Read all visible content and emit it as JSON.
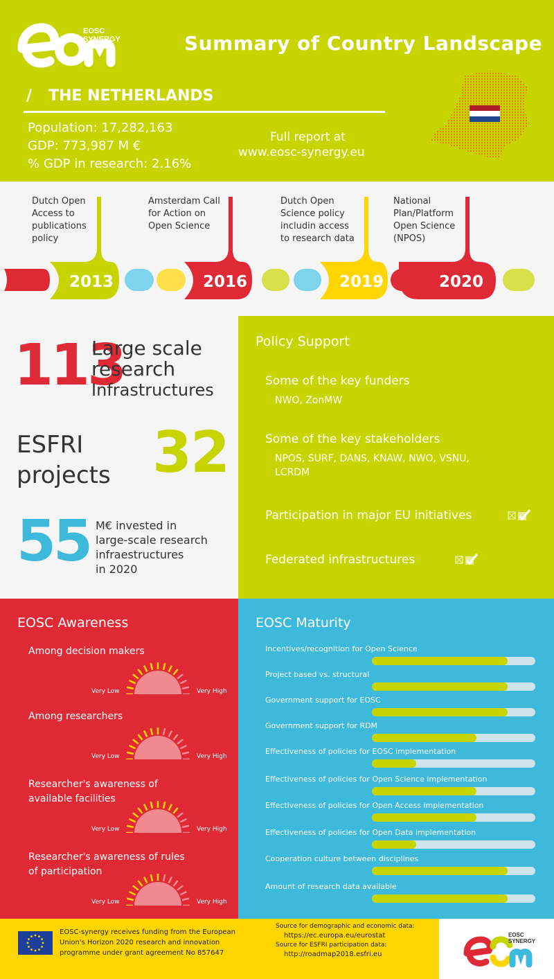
{
  "brand": {
    "logo_text_line1": "EOSC",
    "logo_text_line2": "SYNERGY",
    "colors": {
      "lime": "#c8d400",
      "red": "#df2a36",
      "blue": "#3db9db",
      "yellow": "#ffd500",
      "cyan": "#7dd4ec"
    }
  },
  "header": {
    "title": "Summary of Country Landscape",
    "slash": "/",
    "country": "THE NETHERLANDS",
    "population": "Population: 17,282,163",
    "gdp": "GDP: 773,987 M €",
    "gdp_research": "% GDP in research: 2.16%",
    "report_line1": "Full report at",
    "report_line2": "www.eosc-synergy.eu"
  },
  "timeline": {
    "events": [
      {
        "year": "2013",
        "lines": [
          "Dutch Open",
          "Access to",
          "publications",
          "policy"
        ],
        "color": "lime"
      },
      {
        "year": "2016",
        "lines": [
          "Amsterdam Call",
          "for Action on",
          "Open Science"
        ],
        "color": "red"
      },
      {
        "year": "2019",
        "lines": [
          "Dutch Open",
          "Science policy",
          "includin access",
          "to research data"
        ],
        "color": "yellow"
      },
      {
        "year": "2020",
        "lines": [
          "National",
          "Plan/Platform",
          "Open Science",
          "(NPOS)"
        ],
        "color": "red"
      }
    ]
  },
  "infrastructures": {
    "large_scale_number": "113",
    "large_scale_line1": "Large scale",
    "large_scale_line2": "research",
    "large_scale_line3": "Infrastructures",
    "esfri_line1": "ESFRI",
    "esfri_line2": "projects",
    "esfri_number": "32",
    "invest_number": "55",
    "invest_line1": "M€ invested in",
    "invest_line2": "large-scale research",
    "invest_line3": "infraestructures",
    "invest_line4": "in 2020"
  },
  "policy": {
    "title": "Policy Support",
    "funders_heading": "Some of the key funders",
    "funders": "NWO, ZonMW",
    "stakeholders_heading": "Some of the key stakeholders",
    "stakeholders_line1": "NPOS, SURF, DANS, KNAW, NWO, VSNU,",
    "stakeholders_line2": "LCRDM",
    "eu_initiatives": "Participation in major EU initiatives",
    "eu_initiatives_checked": true,
    "federated": "Federated infrastructures",
    "federated_checked": true
  },
  "awareness": {
    "title": "EOSC Awareness",
    "low_label": "Very Low",
    "high_label": "Very High",
    "items": [
      {
        "line1": "Among decision makers",
        "line2": "",
        "level": 0.75
      },
      {
        "line1": "Among researchers",
        "line2": "",
        "level": 0.5
      },
      {
        "line1": "Researcher's awareness of",
        "line2": "available facilities",
        "level": 0.75
      },
      {
        "line1": "Researcher's awareness of rules",
        "line2": "of participation",
        "level": 0.5
      }
    ]
  },
  "maturity": {
    "title": "EOSC Maturity",
    "items": [
      {
        "label": "Incentives/recognition for Open Science",
        "level": 0.83
      },
      {
        "label": "Project based vs. structural",
        "level": 0.83
      },
      {
        "label": "Government support for EOSC",
        "level": 0.83
      },
      {
        "label": "Government support for RDM",
        "level": 0.64
      },
      {
        "label": "Effectiveness of policies for EOSC implementation",
        "level": 0.27
      },
      {
        "label": "Effectiveness of policies for Open Science implementation",
        "level": 0.64
      },
      {
        "label": "Effectiveness of policies for Open Access implementation",
        "level": 0.64
      },
      {
        "label": "Effectiveness of policies for Open Data implementation",
        "level": 0.27
      },
      {
        "label": "Cooperation culture between disciplines",
        "level": 0.83
      },
      {
        "label": "Amount of research data available",
        "level": 0.83
      }
    ]
  },
  "footer": {
    "funding_line1": "EOSC-synergy receives funding from the European",
    "funding_line2": "Union's Horizon 2020 research and innovation",
    "funding_line3": "programme under grant agreement No 857647",
    "src1_label": "Source for demographic and economic data:",
    "src1_url": "https://ec.europa.eu/eurostat",
    "src2_label": "Source for ESFRI participation data:",
    "src2_url": "http://roadmap2018.esfri.eu"
  }
}
